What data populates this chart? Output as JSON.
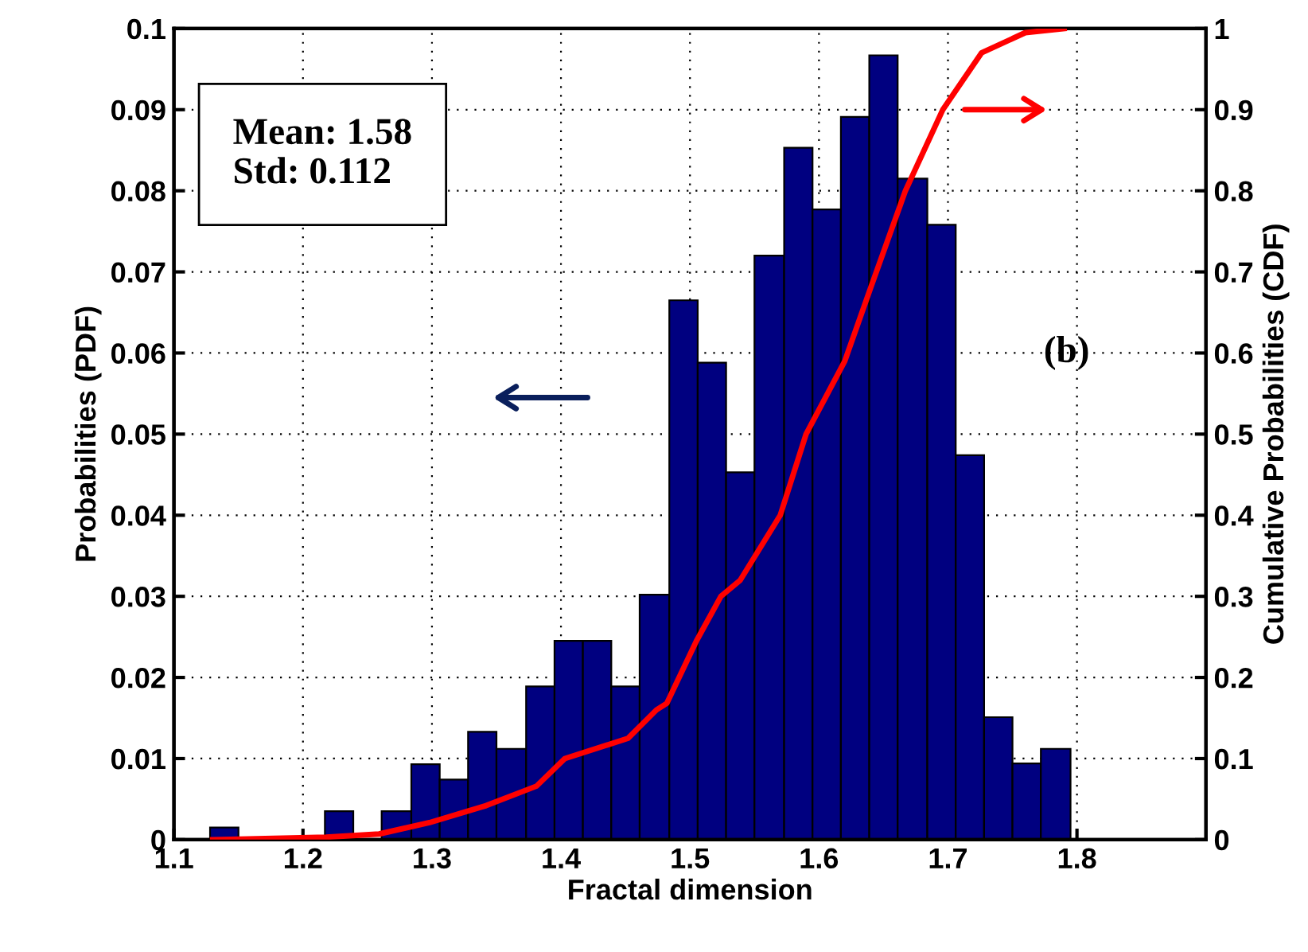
{
  "chart_data": {
    "type": "histogram",
    "xlabel": "Fractal dimension",
    "ylabel": "Probabilities (PDF)",
    "y2label": "Cumulative Probabilities (CDF)",
    "bins": [
      1.128,
      1.15,
      1.217,
      1.239,
      1.261,
      1.284,
      1.306,
      1.328,
      1.35,
      1.373,
      1.395,
      1.417,
      1.439,
      1.461,
      1.484,
      1.506,
      1.528,
      1.55,
      1.573,
      1.595,
      1.617,
      1.639,
      1.661,
      1.684,
      1.706,
      1.728,
      1.75,
      1.772,
      1.795
    ],
    "values": [
      0.0015,
      0,
      0.0035,
      0,
      0.0035,
      0.0093,
      0.0074,
      0.0133,
      0.0112,
      0.0189,
      0.0245,
      0.0245,
      0.0189,
      0.0302,
      0.0665,
      0.0588,
      0.0453,
      0.072,
      0.0853,
      0.0777,
      0.0891,
      0.0967,
      0.0815,
      0.0758,
      0.0474,
      0.0151,
      0.0094,
      0.0112
    ],
    "color": "#000080",
    "series": [
      {
        "type": "line",
        "axis": "y2",
        "color": "#ff0000",
        "x": [
          1.13,
          1.218,
          1.259,
          1.298,
          1.342,
          1.381,
          1.403,
          1.452,
          1.474,
          1.482,
          1.505,
          1.524,
          1.539,
          1.57,
          1.59,
          1.62,
          1.64,
          1.667,
          1.696,
          1.726,
          1.76,
          1.79
        ],
        "values": [
          0,
          0.003,
          0.007,
          0.021,
          0.042,
          0.066,
          0.1,
          0.125,
          0.16,
          0.168,
          0.245,
          0.3,
          0.32,
          0.4,
          0.5,
          0.59,
          0.68,
          0.8,
          0.9,
          0.97,
          0.995,
          1.0
        ]
      }
    ],
    "xlim": [
      1.1,
      1.9
    ],
    "xticks": [
      1.1,
      1.2,
      1.3,
      1.4,
      1.5,
      1.6,
      1.7,
      1.8
    ],
    "ylim": [
      0,
      0.1
    ],
    "yticks": [
      0,
      0.01,
      0.02,
      0.03,
      0.04,
      0.05,
      0.06,
      0.07,
      0.08,
      0.09,
      0.1
    ],
    "y2lim": [
      0,
      1
    ],
    "y2ticks": [
      0,
      0.1,
      0.2,
      0.3,
      0.4,
      0.5,
      0.6,
      0.7,
      0.8,
      0.9,
      1
    ],
    "annotations": [
      "Mean: 1.58\nStd: 0.112",
      "(b)"
    ],
    "grid": true,
    "line_style": "solid"
  }
}
